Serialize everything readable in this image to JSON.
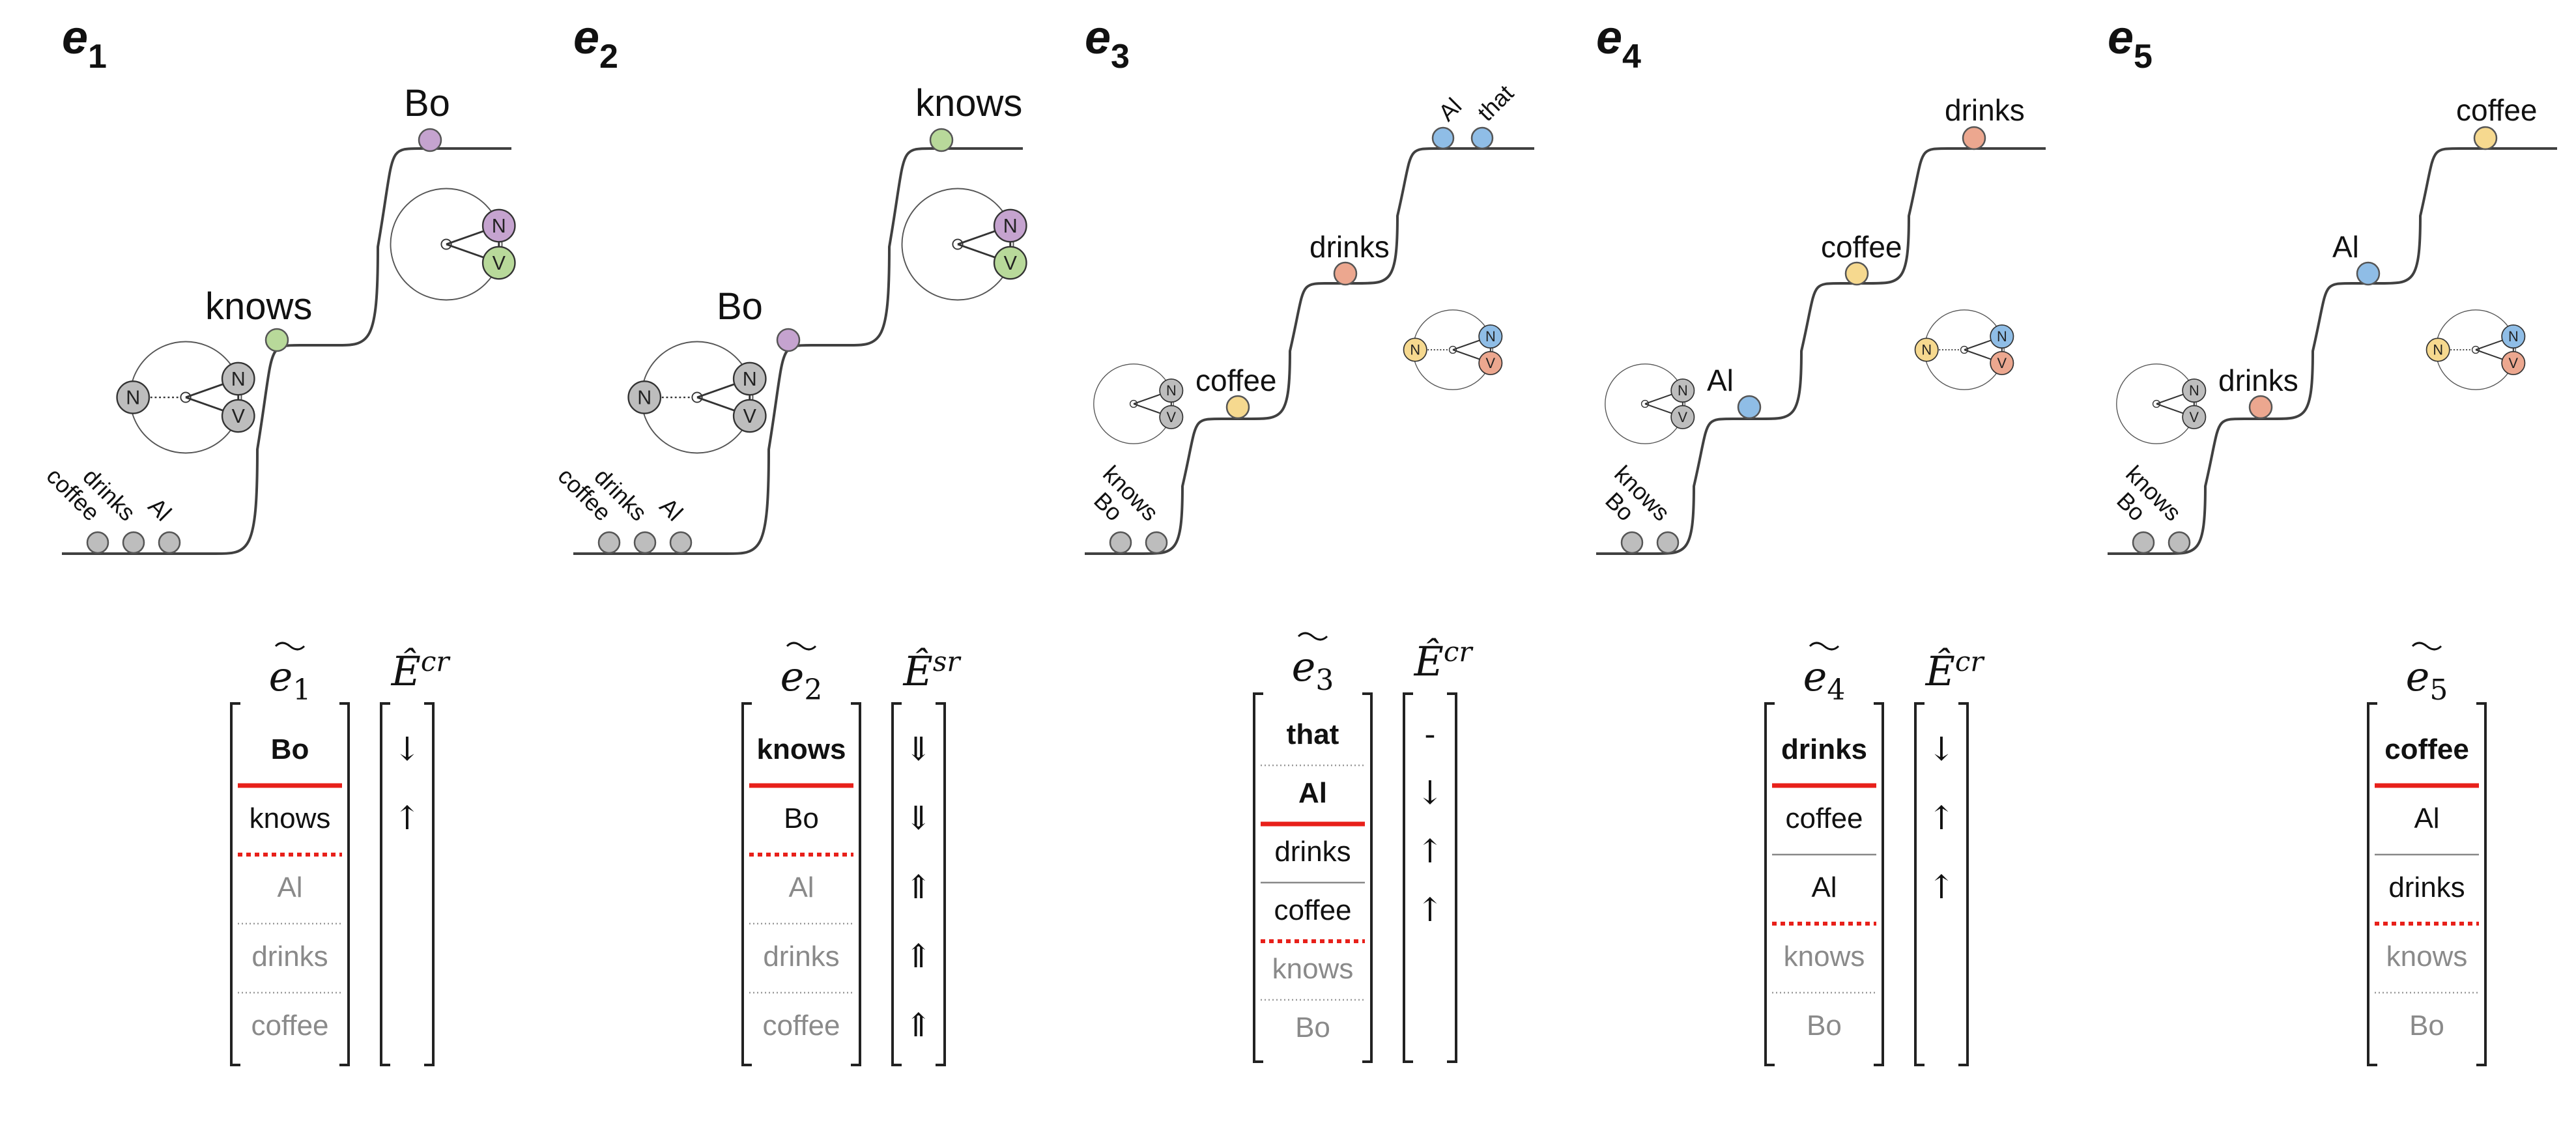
{
  "colors": {
    "bo": "#c5a3cf",
    "knows": "#b8d99a",
    "al": "#8fbde6",
    "drinks": "#eca78f",
    "coffee": "#f6d98f",
    "gray": "#bdbdbd",
    "red": "#e8201a",
    "dim_text": "#8a8a8a",
    "line": "#404040"
  },
  "panels": [
    {
      "id": "e1",
      "label_letter": "e",
      "label_index": "1",
      "staircase_steps": 2,
      "floor_nodes": [
        "coffee",
        "drinks",
        "Al"
      ],
      "step_labels": [
        {
          "text": "knows",
          "color": "knows",
          "step": 1
        },
        {
          "text": "Bo",
          "color": "bo",
          "step": 2
        }
      ],
      "glyphs": [
        {
          "kind": "big3",
          "n_left": "N",
          "n_top": "N",
          "n_bottom": "V",
          "top_color": "gray",
          "bottom_color": "gray",
          "left_color": "gray",
          "place": "lower"
        },
        {
          "kind": "big2",
          "n_top": "N",
          "n_bottom": "V",
          "top_color": "bo",
          "bottom_color": "knows",
          "place": "upper"
        }
      ],
      "matrix": {
        "tilde_letter": "e",
        "tilde_index": "1",
        "items": [
          {
            "text": "Bo",
            "style": "bold"
          },
          {
            "text": "knows",
            "style": "normal"
          },
          {
            "text": "Al",
            "style": "dim"
          },
          {
            "text": "drinks",
            "style": "dim"
          },
          {
            "text": "coffee",
            "style": "dim"
          }
        ],
        "separators": [
          "red-solid",
          "red-dotted",
          "gray-dotted",
          "gray-dotted"
        ],
        "has_arrows": true,
        "arrow_header": "Ê",
        "arrow_header_sup": "cr",
        "arrows": [
          "↓",
          "↑"
        ]
      }
    },
    {
      "id": "e2",
      "label_letter": "e",
      "label_index": "2",
      "staircase_steps": 2,
      "floor_nodes": [
        "coffee",
        "drinks",
        "Al"
      ],
      "step_labels": [
        {
          "text": "Bo",
          "color": "bo",
          "step": 1
        },
        {
          "text": "knows",
          "color": "knows",
          "step": 2
        }
      ],
      "glyphs": [
        {
          "kind": "big3",
          "n_left": "N",
          "n_top": "N",
          "n_bottom": "V",
          "top_color": "gray",
          "bottom_color": "gray",
          "left_color": "gray",
          "place": "lower"
        },
        {
          "kind": "big2",
          "n_top": "N",
          "n_bottom": "V",
          "top_color": "bo",
          "bottom_color": "knows",
          "place": "upper"
        }
      ],
      "matrix": {
        "tilde_letter": "e",
        "tilde_index": "2",
        "items": [
          {
            "text": "knows",
            "style": "bold"
          },
          {
            "text": "Bo",
            "style": "normal"
          },
          {
            "text": "Al",
            "style": "dim"
          },
          {
            "text": "drinks",
            "style": "dim"
          },
          {
            "text": "coffee",
            "style": "dim"
          }
        ],
        "separators": [
          "red-solid",
          "red-dotted",
          "gray-dotted",
          "gray-dotted"
        ],
        "has_arrows": true,
        "arrow_header": "Ê",
        "arrow_header_sup": "sr",
        "arrows": [
          "⇓",
          "⇓",
          "⇑",
          "⇑",
          "⇑"
        ]
      }
    },
    {
      "id": "e3",
      "label_letter": "e",
      "label_index": "3",
      "staircase_steps": 3,
      "floor_nodes": [
        "Bo",
        "knows"
      ],
      "step_labels": [
        {
          "text": "coffee",
          "color": "coffee",
          "step": 1
        },
        {
          "text": "drinks",
          "color": "drinks",
          "step": 2
        },
        {
          "text": "Al",
          "color": "al",
          "step": 3,
          "rotated": true
        },
        {
          "text": "that",
          "color": "al",
          "step": 3,
          "rotated": true
        }
      ],
      "glyphs": [
        {
          "kind": "small2",
          "n_top": "N",
          "n_bottom": "V",
          "top_color": "gray",
          "bottom_color": "gray",
          "place": "lower"
        },
        {
          "kind": "small3",
          "n_left": "N",
          "n_top": "N",
          "n_bottom": "V",
          "top_color": "al",
          "bottom_color": "drinks",
          "left_color": "coffee",
          "place": "mid"
        }
      ],
      "matrix": {
        "tilde_letter": "e",
        "tilde_index": "3",
        "items": [
          {
            "text": "that",
            "style": "bold"
          },
          {
            "text": "Al",
            "style": "bold"
          },
          {
            "text": "drinks",
            "style": "normal"
          },
          {
            "text": "coffee",
            "style": "normal"
          },
          {
            "text": "knows",
            "style": "dim"
          },
          {
            "text": "Bo",
            "style": "dim"
          }
        ],
        "separators": [
          "gray-dotted",
          "red-solid",
          "gray-solid",
          "red-dotted",
          "gray-dotted"
        ],
        "has_arrows": true,
        "arrow_header": "Ê",
        "arrow_header_sup": "cr",
        "arrows": [
          "-",
          "↓",
          "↑",
          "↑"
        ]
      }
    },
    {
      "id": "e4",
      "label_letter": "e",
      "label_index": "4",
      "staircase_steps": 3,
      "floor_nodes": [
        "Bo",
        "knows"
      ],
      "step_labels": [
        {
          "text": "Al",
          "color": "al",
          "step": 1
        },
        {
          "text": "coffee",
          "color": "coffee",
          "step": 2
        },
        {
          "text": "drinks",
          "color": "drinks",
          "step": 3
        }
      ],
      "glyphs": [
        {
          "kind": "small2",
          "n_top": "N",
          "n_bottom": "V",
          "top_color": "gray",
          "bottom_color": "gray",
          "place": "lower"
        },
        {
          "kind": "small3",
          "n_left": "N",
          "n_top": "N",
          "n_bottom": "V",
          "top_color": "al",
          "bottom_color": "drinks",
          "left_color": "coffee",
          "place": "mid"
        }
      ],
      "matrix": {
        "tilde_letter": "e",
        "tilde_index": "4",
        "items": [
          {
            "text": "drinks",
            "style": "bold"
          },
          {
            "text": "coffee",
            "style": "normal"
          },
          {
            "text": "Al",
            "style": "normal"
          },
          {
            "text": "knows",
            "style": "dim"
          },
          {
            "text": "Bo",
            "style": "dim"
          }
        ],
        "separators": [
          "red-solid",
          "gray-solid",
          "red-dotted",
          "gray-dotted"
        ],
        "has_arrows": true,
        "arrow_header": "Ê",
        "arrow_header_sup": "cr",
        "arrows": [
          "↓",
          "↑",
          "↑"
        ]
      }
    },
    {
      "id": "e5",
      "label_letter": "e",
      "label_index": "5",
      "staircase_steps": 3,
      "floor_nodes": [
        "Bo",
        "knows"
      ],
      "step_labels": [
        {
          "text": "drinks",
          "color": "drinks",
          "step": 1
        },
        {
          "text": "Al",
          "color": "al",
          "step": 2
        },
        {
          "text": "coffee",
          "color": "coffee",
          "step": 3
        }
      ],
      "glyphs": [
        {
          "kind": "small2",
          "n_top": "N",
          "n_bottom": "V",
          "top_color": "gray",
          "bottom_color": "gray",
          "place": "lower"
        },
        {
          "kind": "small3",
          "n_left": "N",
          "n_top": "N",
          "n_bottom": "V",
          "top_color": "al",
          "bottom_color": "drinks",
          "left_color": "coffee",
          "place": "mid"
        }
      ],
      "matrix": {
        "tilde_letter": "e",
        "tilde_index": "5",
        "items": [
          {
            "text": "coffee",
            "style": "bold"
          },
          {
            "text": "Al",
            "style": "normal"
          },
          {
            "text": "drinks",
            "style": "normal"
          },
          {
            "text": "knows",
            "style": "dim"
          },
          {
            "text": "Bo",
            "style": "dim"
          }
        ],
        "separators": [
          "red-solid",
          "gray-solid",
          "red-dotted",
          "gray-dotted"
        ],
        "has_arrows": false,
        "arrows": []
      }
    }
  ]
}
